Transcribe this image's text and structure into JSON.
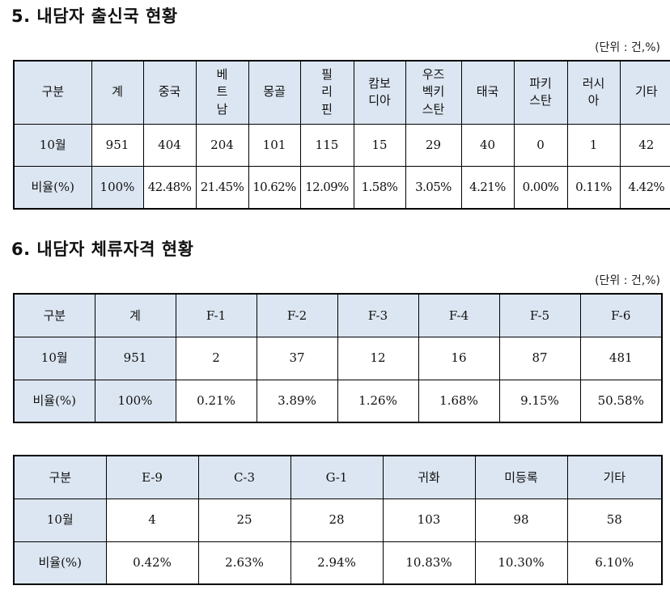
{
  "section5": {
    "title": "5. 내담자 출신국 현황",
    "unit": "(단위 : 건,%)",
    "headers": [
      "구분",
      "계",
      "중국",
      "베\n트\n남",
      "몽골",
      "필\n리\n핀",
      "캄보\n디아",
      "우즈\n벡키\n스탄",
      "태국",
      "파키\n스탄",
      "러시\n아",
      "기타"
    ],
    "rows": [
      [
        "10월",
        "951",
        "404",
        "204",
        "101",
        "115",
        "15",
        "29",
        "40",
        "0",
        "1",
        "42"
      ],
      [
        "비율(%)",
        "100%",
        "42.48%",
        "21.45%",
        "10.62%",
        "12.09%",
        "1.58%",
        "3.05%",
        "4.21%",
        "0.00%",
        "0.11%",
        "4.42%"
      ]
    ]
  },
  "section6": {
    "title": "6. 내담자 체류자격 현황",
    "unit": "(단위 : 건,%)",
    "table1": {
      "headers": [
        "구분",
        "계",
        "F-1",
        "F-2",
        "F-3",
        "F-4",
        "F-5",
        "F-6"
      ],
      "rows": [
        [
          "10월",
          "951",
          "2",
          "37",
          "12",
          "16",
          "87",
          "481"
        ],
        [
          "비율(%)",
          "100%",
          "0.21%",
          "3.89%",
          "1.26%",
          "1.68%",
          "9.15%",
          "50.58%"
        ]
      ]
    },
    "table2": {
      "headers": [
        "구분",
        "E-9",
        "C-3",
        "G-1",
        "귀화",
        "미등록",
        "기타"
      ],
      "rows": [
        [
          "10월",
          "4",
          "25",
          "28",
          "103",
          "98",
          "58"
        ],
        [
          "비율(%)",
          "0.42%",
          "2.63%",
          "2.94%",
          "10.83%",
          "10.30%",
          "6.10%"
        ]
      ]
    }
  }
}
